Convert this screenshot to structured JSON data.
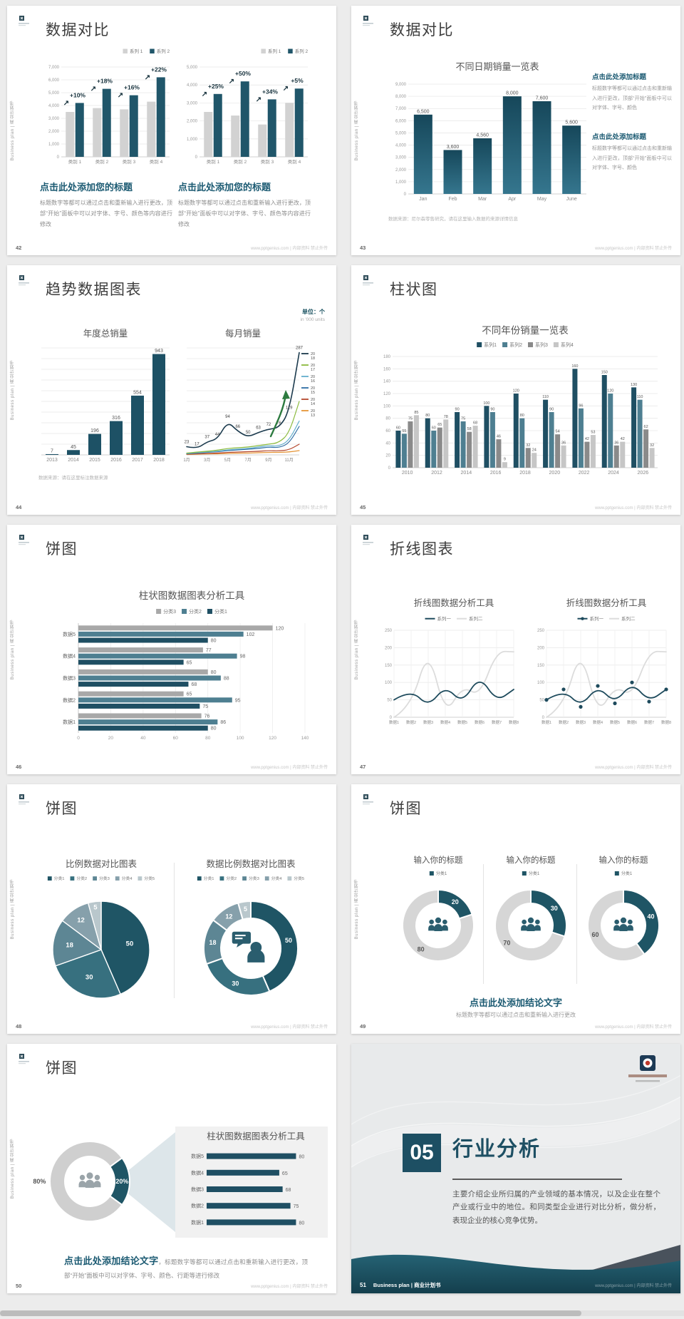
{
  "common": {
    "watermark": "www.pptgenius.com | 内部资料 禁止外传",
    "side_text": "Business plan | 商业计划书",
    "colors": {
      "accent": "#1b5a72",
      "teal_dark": "#1f4f63",
      "teal_mid": "#4e7f91",
      "gray_bar": "#d2d2d2",
      "gray_mid": "#8a8a8a"
    }
  },
  "slides": {
    "s42": {
      "page": "42",
      "title": "数据对比",
      "blocks": [
        {
          "heading": "点击此处添加您的标题",
          "body": "标题数字等都可以通过点击和重新输入进行更改，顶部“开始”面板中可以对字体、字号、颜色等内容进行修改"
        },
        {
          "heading": "点击此处添加您的标题",
          "body": "标题数字等都可以通过点击和重新输入进行更改，顶部“开始”面板中可以对字体、字号、颜色等内容进行修改"
        }
      ]
    },
    "s43": {
      "page": "43",
      "title": "数据对比",
      "source": "数据来源：尼尔森零售研究，请在这里输入数据的来源详情信息",
      "blocks": [
        {
          "heading": "点击此处添加标题",
          "body": "标题数字等都可以通过点击和重新输入进行更改，顶部“开始”面板中可以对字体、字号、颜色"
        },
        {
          "heading": "点击此处添加标题",
          "body": "标题数字等都可以通过点击和重新输入进行更改，顶部“开始”面板中可以对字体、字号、颜色"
        }
      ]
    },
    "s44": {
      "page": "44",
      "title": "趋势数据图表",
      "unit": "单位：个",
      "unit_sub": "in '000 units",
      "source": "数据来源：请在这里标注数据来源"
    },
    "s45": {
      "page": "45",
      "title": "柱状图"
    },
    "s46": {
      "page": "46",
      "title": "饼图"
    },
    "s47": {
      "page": "47",
      "title": "折线图表"
    },
    "s48": {
      "page": "48",
      "title": "饼图"
    },
    "s49": {
      "page": "49",
      "title": "饼图",
      "conclusion_heading": "点击此处添加结论文字",
      "conclusion_body": "标题数字等都可以通过点击和重新输入进行更改"
    },
    "s50": {
      "page": "50",
      "title": "饼图",
      "conclusion_heading": "点击此处添加结论文字",
      "conclusion_body": "，标题数字等都可以通过点击和重新输入进行更改，顶部“开始”面板中可以对字体、字号、颜色、行距等进行修改"
    },
    "s51": {
      "page": "51",
      "number": "05",
      "title": "行业分析",
      "footer_brand": "Business plan | 商业计划书",
      "body": "主要介绍企业所归属的产业领域的基本情况，以及企业在整个产业或行业中的地位。和同类型企业进行对比分析，做分析，表现企业的核心竞争优势。"
    }
  },
  "chart_data": [
    {
      "id": "c42L",
      "type": "bar",
      "ymax": 7000,
      "ystep": 1000,
      "ylabels": true,
      "categories": [
        "类别 1",
        "类别 2",
        "类别 3",
        "类别 4"
      ],
      "series": [
        {
          "name": "系列 1",
          "color": "#d2d2d2",
          "values": [
            3500,
            3800,
            3700,
            4300
          ]
        },
        {
          "name": "系列 2",
          "color": "#20566a",
          "values": [
            4200,
            5300,
            4800,
            6200
          ]
        }
      ],
      "legend": [
        "系列 1",
        "系列 2"
      ],
      "annotations": [
        "+10%",
        "+18%",
        "+16%",
        "+22%"
      ]
    },
    {
      "id": "c42R",
      "type": "bar",
      "ymax": 5000,
      "ystep": 1000,
      "ylabels": true,
      "categories": [
        "类别 1",
        "类别 2",
        "类别 3",
        "类别 4"
      ],
      "series": [
        {
          "name": "系列 1",
          "color": "#d2d2d2",
          "values": [
            2500,
            2300,
            1800,
            3000
          ]
        },
        {
          "name": "系列 2",
          "color": "#20566a",
          "values": [
            3500,
            4200,
            3200,
            3800
          ]
        }
      ],
      "legend": [
        "系列 1",
        "系列 2"
      ],
      "annotations": [
        "+25%",
        "+50%",
        "+34%",
        "+5%"
      ]
    },
    {
      "id": "c43",
      "type": "bar",
      "title": "不同日期销量一览表",
      "ymax": 9000,
      "ystep": 1000,
      "ylabels": true,
      "categories": [
        "Jan",
        "Feb",
        "Mar",
        "Apr",
        "May",
        "June"
      ],
      "series": [
        {
          "name": "销量",
          "color": "#1d5165",
          "values": [
            6500,
            3600,
            4560,
            8000,
            7600,
            5600
          ]
        }
      ],
      "value_labels": true,
      "gradient": [
        "#16475a",
        "#35768e"
      ]
    },
    {
      "id": "c44L",
      "type": "bar",
      "title": "年度总销量",
      "ymax": 1000,
      "ystep": 100,
      "ylabels": false,
      "categories": [
        "2013",
        "2014",
        "2015",
        "2016",
        "2017",
        "2018"
      ],
      "series": [
        {
          "name": "年度总销量",
          "color": "#1d5165",
          "values": [
            7,
            45,
            196,
            316,
            554,
            943
          ]
        }
      ],
      "value_labels": true
    },
    {
      "id": "c44R",
      "type": "line",
      "title": "每月销量",
      "ymax": 300,
      "ystep": 30,
      "ylabels": false,
      "x": [
        "1月",
        "",
        "3月",
        "",
        "5月",
        "",
        "7月",
        "",
        "9月",
        "",
        "11月",
        ""
      ],
      "series": [
        {
          "name": "2018",
          "color": "#1b3a4d",
          "width": 1.6,
          "values": [
            23,
            17,
            37,
            44,
            94,
            66,
            50,
            63,
            72,
            76,
            119,
            287
          ],
          "labels": true
        },
        {
          "name": "2017",
          "color": "#8aba3c",
          "width": 1.2,
          "values": [
            5,
            8,
            10,
            13,
            18,
            20,
            22,
            26,
            30,
            34,
            60,
            150
          ]
        },
        {
          "name": "2016",
          "color": "#62aecc",
          "width": 1.2,
          "values": [
            4,
            6,
            8,
            10,
            14,
            16,
            18,
            22,
            26,
            24,
            40,
            95
          ]
        },
        {
          "name": "2015",
          "color": "#2e6da4",
          "width": 1.2,
          "values": [
            3,
            5,
            7,
            9,
            12,
            14,
            16,
            18,
            22,
            20,
            32,
            80
          ]
        },
        {
          "name": "2014",
          "color": "#b5482e",
          "width": 1.2,
          "values": [
            2,
            3,
            4,
            5,
            7,
            8,
            9,
            10,
            12,
            11,
            14,
            30
          ]
        },
        {
          "name": "2013",
          "color": "#e59537",
          "width": 1.2,
          "values": [
            1,
            2,
            3,
            3,
            4,
            5,
            5,
            6,
            7,
            7,
            8,
            12
          ]
        }
      ],
      "side_legend": true
    },
    {
      "id": "c45",
      "type": "bar",
      "title": "不同年份销量一览表",
      "ymax": 180,
      "ystep": 20,
      "ylabels": true,
      "categories": [
        "2010",
        "2012",
        "2014",
        "2016",
        "2018",
        "2020",
        "2022",
        "2024",
        "2026"
      ],
      "series": [
        {
          "name": "系列1",
          "color": "#1f4f63",
          "values": [
            60,
            80,
            90,
            100,
            120,
            110,
            160,
            150,
            130
          ]
        },
        {
          "name": "系列2",
          "color": "#4e7f91",
          "values": [
            55,
            60,
            75,
            90,
            80,
            90,
            96,
            120,
            110
          ]
        },
        {
          "name": "系列3",
          "color": "#8a8a8a",
          "values": [
            75,
            65,
            58,
            46,
            32,
            54,
            42,
            36,
            62
          ]
        },
        {
          "name": "系列4",
          "color": "#c6c6c6",
          "values": [
            85,
            78,
            68,
            9,
            24,
            36,
            53,
            42,
            32
          ]
        }
      ],
      "legend": [
        "系列1",
        "系列2",
        "系列3",
        "系列4"
      ],
      "value_labels": true
    },
    {
      "id": "c46",
      "type": "hbar",
      "title": "柱状图数据图表分析工具",
      "xmax": 140,
      "xstep": 20,
      "categories": [
        "数据5",
        "数据4",
        "数据3",
        "数据2",
        "数据1"
      ],
      "series": [
        {
          "name": "分类3",
          "color": "#a8a8a8",
          "values": [
            120,
            77,
            80,
            65,
            76
          ]
        },
        {
          "name": "分类2",
          "color": "#4e7f91",
          "values": [
            102,
            98,
            88,
            95,
            86
          ]
        },
        {
          "name": "分类1",
          "color": "#1f4f63",
          "values": [
            80,
            65,
            68,
            75,
            80
          ]
        }
      ],
      "legend": [
        "分类3",
        "分类2",
        "分类1"
      ],
      "value_labels": true
    },
    {
      "id": "c47L",
      "type": "line",
      "title": "折线图数据分析工具",
      "ymax": 250,
      "ystep": 50,
      "ylabels": true,
      "x": [
        "数据1",
        "数据2",
        "数据3",
        "数据4",
        "数据5",
        "数据6",
        "数据7",
        "数据8"
      ],
      "series": [
        {
          "name": "系列一",
          "color": "#1d4a5c",
          "width": 1.8,
          "values": [
            50,
            80,
            30,
            90,
            40,
            120,
            45,
            80
          ]
        },
        {
          "name": "系列二",
          "color": "#dcdcdc",
          "width": 1.8,
          "values": [
            0,
            30,
            200,
            5,
            90,
            60,
            190,
            188
          ]
        }
      ],
      "legend": [
        "系列一",
        "系列二"
      ]
    },
    {
      "id": "c47R",
      "type": "line",
      "title": "折线图数据分析工具",
      "ymax": 250,
      "ystep": 50,
      "ylabels": true,
      "x": [
        "数据1",
        "数据2",
        "数据3",
        "数据4",
        "数据5",
        "数据6",
        "数据7",
        "数据8"
      ],
      "series": [
        {
          "name": "系列一",
          "color": "#1d4a5c",
          "width": 1.8,
          "values": [
            50,
            80,
            30,
            90,
            40,
            100,
            45,
            80
          ],
          "dots": true
        },
        {
          "name": "系列二",
          "color": "#dcdcdc",
          "width": 1.8,
          "values": [
            0,
            30,
            200,
            5,
            90,
            60,
            190,
            188
          ]
        }
      ],
      "legend": [
        "系列一",
        "系列二"
      ]
    },
    {
      "id": "c48L",
      "type": "pie",
      "title": "比例数据对比图表",
      "legend": [
        "分类1",
        "分类2",
        "分类3",
        "分类4",
        "分类5"
      ],
      "values": [
        50,
        30,
        18,
        12,
        5
      ],
      "labels": [
        "50",
        "30",
        "18",
        "12",
        "5"
      ],
      "colors": [
        "#1f5565",
        "#37707f",
        "#5d8694",
        "#86a0ab",
        "#b9c7cc"
      ]
    },
    {
      "id": "c48R",
      "type": "donut",
      "title": "数据比例数据对比图表",
      "legend": [
        "分类1",
        "分类2",
        "分类3",
        "分类4",
        "分类5"
      ],
      "values": [
        50,
        30,
        18,
        12,
        5
      ],
      "labels": [
        "50",
        "30",
        "18",
        "12",
        "5"
      ],
      "colors": [
        "#1f5565",
        "#37707f",
        "#5d8694",
        "#86a0ab",
        "#b9c7cc"
      ],
      "icon": "person-chat"
    },
    {
      "id": "c49a",
      "type": "donut",
      "title": "输入你的标题",
      "legend": [
        "分类1"
      ],
      "values": [
        20,
        80
      ],
      "labels": [
        "20",
        "80"
      ],
      "colors": [
        "#1f5565",
        "#d6d6d6"
      ],
      "icon": "people"
    },
    {
      "id": "c49b",
      "type": "donut",
      "title": "输入你的标题",
      "legend": [
        "分类1"
      ],
      "values": [
        30,
        70
      ],
      "labels": [
        "30",
        "70"
      ],
      "colors": [
        "#1f5565",
        "#d6d6d6"
      ],
      "icon": "people"
    },
    {
      "id": "c49c",
      "type": "donut",
      "title": "输入你的标题",
      "legend": [
        "分类1"
      ],
      "values": [
        40,
        60
      ],
      "labels": [
        "40",
        "60"
      ],
      "colors": [
        "#1f5565",
        "#d6d6d6"
      ],
      "icon": "people"
    },
    {
      "id": "c50",
      "type": "donut",
      "values": [
        20,
        80
      ],
      "labels": [
        "20%",
        "80%"
      ],
      "colors": [
        "#1f5565",
        "#cfcfcf"
      ],
      "icon": "people",
      "start": 54
    },
    {
      "id": "c50bars",
      "type": "hbar",
      "title": "柱状图数据图表分析工具",
      "xmax": 88,
      "categories": [
        "数据5",
        "数据4",
        "数据3",
        "数据2",
        "数据1"
      ],
      "series": [
        {
          "name": "数据",
          "color": "#1f4f63",
          "values": [
            80,
            65,
            68,
            75,
            80
          ]
        }
      ],
      "value_labels": true
    }
  ]
}
